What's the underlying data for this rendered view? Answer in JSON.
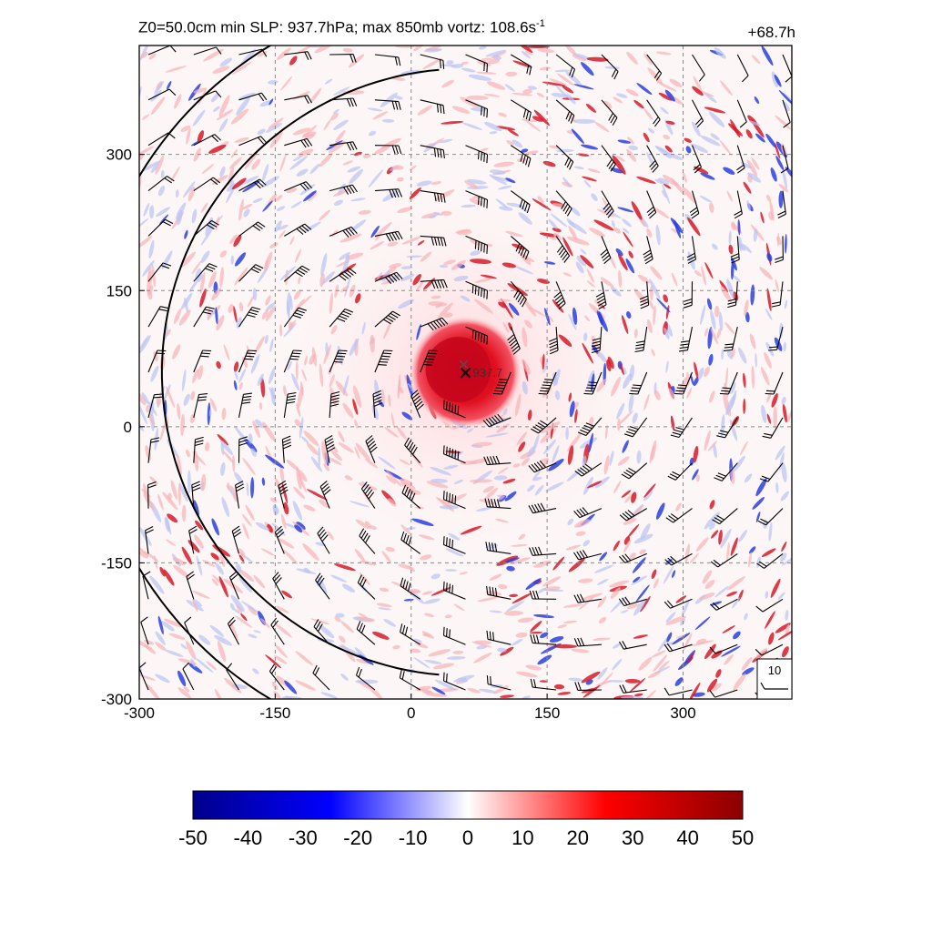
{
  "header": {
    "title_prefix": "Z0=50.0cm  min SLP: 937.7hPa; max 850mb vortz: 108.6s",
    "title_superscript": "-1",
    "time_label": "+68.7h"
  },
  "chart_data": {
    "type": "heatmap",
    "description_field": "850mb relative vorticity with wind barbs",
    "xlim": [
      -300,
      420
    ],
    "ylim": [
      -300,
      420
    ],
    "x_ticks": [
      -300,
      -150,
      0,
      150,
      300
    ],
    "x_tick_labels": [
      "-300",
      "-150",
      "0",
      "150",
      "300"
    ],
    "y_ticks": [
      -300,
      -150,
      0,
      150,
      300
    ],
    "y_tick_labels": [
      "-300",
      "-150",
      "0",
      "150",
      "300"
    ],
    "grid": true,
    "center": {
      "x": 60,
      "y": 60,
      "marker": "×",
      "label": "937.7"
    },
    "eye_core_radius": 40,
    "reference_barb_label": "10",
    "colorbar": {
      "min": -50,
      "max": 50,
      "tick_labels": [
        "-50",
        "-40",
        "-30",
        "-20",
        "-10",
        "0",
        "10",
        "20",
        "30",
        "40",
        "50"
      ],
      "colors": [
        "#00008b",
        "#0000ff",
        "#ffffff",
        "#ff0000",
        "#8b0000"
      ]
    }
  }
}
